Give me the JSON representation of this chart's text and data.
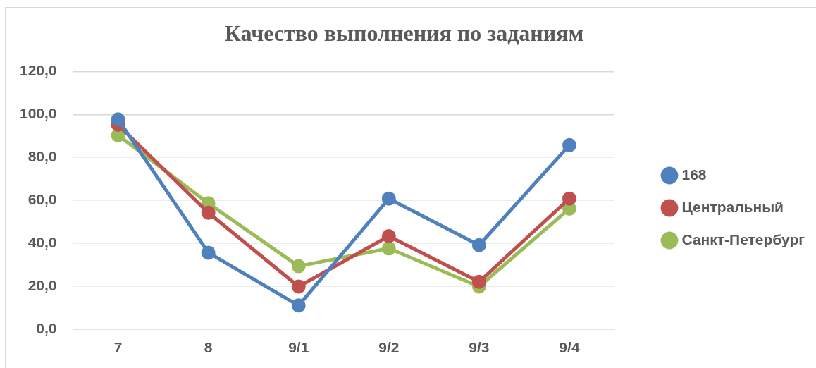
{
  "chart_data": {
    "type": "line",
    "title": "Качество выполнения по заданиям",
    "categories": [
      "7",
      "8",
      "9/1",
      "9/2",
      "9/3",
      "9/4"
    ],
    "series": [
      {
        "name": "168",
        "color": "#4f81bd",
        "values": [
          97.7,
          35.6,
          11.0,
          60.8,
          39.1,
          85.7
        ]
      },
      {
        "name": "Центральный",
        "color": "#c0504d",
        "values": [
          95.2,
          54.2,
          19.8,
          43.3,
          22.0,
          60.8
        ]
      },
      {
        "name": "Санкт-Петербург",
        "color": "#9bbb59",
        "values": [
          90.3,
          58.6,
          29.3,
          37.6,
          19.8,
          56.1
        ]
      }
    ],
    "ylim": [
      0,
      120
    ],
    "yticks": [
      {
        "value": 0,
        "label": "0,0"
      },
      {
        "value": 20,
        "label": "20,0"
      },
      {
        "value": 40,
        "label": "40,0"
      },
      {
        "value": 60,
        "label": "60,0"
      },
      {
        "value": 80,
        "label": "80,0"
      },
      {
        "value": 100,
        "label": "100,0"
      },
      {
        "value": 120,
        "label": "120,0"
      }
    ],
    "grid": "y",
    "legend": "right",
    "marker": "circle",
    "line_style": "solid"
  }
}
